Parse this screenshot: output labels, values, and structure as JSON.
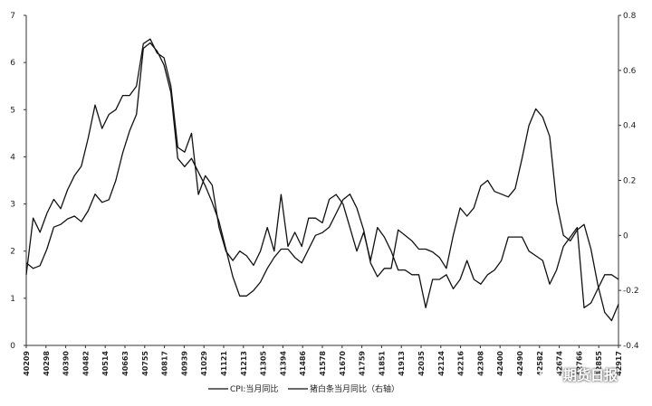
{
  "chart_data": {
    "type": "line",
    "x_ticks": [
      "40209",
      "40298",
      "40390",
      "40482",
      "40514",
      "40663",
      "40755",
      "40817",
      "40939",
      "41029",
      "41121",
      "41213",
      "41305",
      "41394",
      "41486",
      "41578",
      "41670",
      "41759",
      "41851",
      "41913",
      "42035",
      "42124",
      "42216",
      "42308",
      "42400",
      "42490",
      "42582",
      "42674",
      "42766",
      "42855",
      "42917"
    ],
    "y_left": {
      "range": [
        0,
        7
      ],
      "ticks": [
        "0",
        "1",
        "2",
        "3",
        "4",
        "5",
        "6",
        "7"
      ]
    },
    "y_right": {
      "range": [
        -0.4,
        0.8
      ],
      "ticks": [
        "-0.4",
        "-0.2",
        "0",
        "0.2",
        "0.4",
        "0.6",
        "0.8"
      ]
    },
    "legend": {
      "position": "bottom",
      "entries": [
        "CPI:当月同比",
        "猪白条当月同比（右轴）"
      ]
    },
    "series": [
      {
        "name": "CPI:当月同比",
        "axis": "left",
        "values": [
          1.5,
          2.7,
          2.4,
          2.8,
          3.1,
          2.9,
          3.3,
          3.6,
          3.8,
          4.4,
          5.1,
          4.6,
          4.9,
          5.0,
          5.3,
          5.3,
          5.5,
          6.4,
          6.5,
          6.2,
          6.1,
          5.5,
          4.2,
          4.1,
          4.5,
          3.2,
          3.6,
          3.4,
          2.5,
          2.0,
          1.8,
          2.0,
          1.9,
          1.7,
          2.0,
          2.5,
          2.0,
          3.2,
          2.1,
          2.4,
          2.1,
          2.7,
          2.7,
          2.6,
          3.1,
          3.2,
          3.0,
          2.5,
          2.0,
          2.4,
          1.8,
          2.5,
          2.3,
          2.0,
          1.6,
          1.6,
          1.5,
          1.5,
          0.8,
          1.4,
          1.4,
          1.5,
          1.2,
          1.4,
          1.8,
          1.4,
          1.3,
          1.5,
          1.6,
          1.8,
          2.3,
          2.3,
          2.3,
          2.0,
          1.9,
          1.8,
          1.3,
          1.6,
          2.1,
          2.3,
          2.5,
          0.8,
          0.9,
          1.2,
          1.5,
          1.5,
          1.4
        ]
      },
      {
        "name": "猪白条当月同比（右轴）",
        "axis": "right",
        "values": [
          -0.1,
          -0.12,
          -0.11,
          -0.05,
          0.03,
          0.04,
          0.06,
          0.07,
          0.05,
          0.09,
          0.15,
          0.12,
          0.13,
          0.2,
          0.3,
          0.38,
          0.44,
          0.68,
          0.7,
          0.67,
          0.62,
          0.52,
          0.28,
          0.25,
          0.28,
          0.23,
          0.18,
          0.12,
          0.05,
          -0.05,
          -0.15,
          -0.22,
          -0.22,
          -0.2,
          -0.17,
          -0.12,
          -0.08,
          -0.05,
          -0.05,
          -0.08,
          -0.1,
          -0.05,
          0.0,
          0.01,
          0.03,
          0.08,
          0.13,
          0.15,
          0.1,
          0.02,
          -0.1,
          -0.15,
          -0.12,
          -0.12,
          0.02,
          0.0,
          -0.02,
          -0.05,
          -0.05,
          -0.06,
          -0.08,
          -0.12,
          0.0,
          0.1,
          0.07,
          0.1,
          0.18,
          0.2,
          0.16,
          0.15,
          0.14,
          0.17,
          0.28,
          0.4,
          0.46,
          0.43,
          0.36,
          0.12,
          0.0,
          -0.02,
          0.02,
          0.04,
          -0.05,
          -0.18,
          -0.28,
          -0.31,
          -0.25
        ]
      }
    ]
  },
  "watermark": {
    "text": "期货日报",
    "icon": "wechat-icon"
  }
}
